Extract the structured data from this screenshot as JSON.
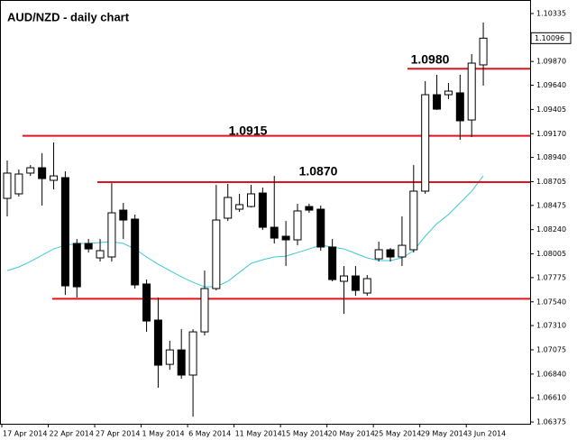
{
  "chart_data": {
    "type": "candlestick",
    "title": "AUD/NZD - daily chart",
    "categories": [
      "17 Apr 2014",
      null,
      null,
      null,
      "22 Apr 2014",
      null,
      null,
      null,
      "27 Apr 2014",
      null,
      null,
      null,
      "1 May 2014",
      null,
      null,
      null,
      "6 May 2014",
      null,
      null,
      null,
      "11 May 2014",
      null,
      null,
      null,
      "15 May 2014",
      null,
      null,
      null,
      "20 May 2014",
      null,
      null,
      null,
      "25 May 2014",
      null,
      null,
      null,
      "29 May 2014",
      null,
      null,
      null,
      "3 Jun 2014",
      null
    ],
    "open": [
      1.08543,
      1.08587,
      1.08788,
      1.0884,
      1.08718,
      1.08744,
      1.08106,
      1.08106,
      1.07966,
      1.07975,
      1.08429,
      1.08342,
      1.07713,
      1.07363,
      1.06934,
      1.07074,
      1.0683,
      1.07249,
      1.07669,
      1.08351,
      1.08438,
      1.08464,
      1.08595,
      1.08263,
      1.08176,
      1.08141,
      1.08464,
      1.08438,
      1.08071,
      1.07739,
      1.07791,
      1.07625,
      1.07957,
      1.08045,
      1.07975,
      1.08045,
      1.08613,
      1.09548,
      1.09548,
      1.09566,
      1.09303,
      1.09837
    ],
    "high": [
      1.0891,
      1.08823,
      1.08866,
      1.0898,
      1.09085,
      1.08805,
      1.08149,
      1.08149,
      1.08149,
      1.08691,
      1.08499,
      1.08386,
      1.07756,
      1.07581,
      1.07162,
      1.07275,
      1.07275,
      1.07843,
      1.08674,
      1.08683,
      1.08587,
      1.08674,
      1.08648,
      1.08761,
      1.08324,
      1.08491,
      1.08491,
      1.08473,
      1.08149,
      1.07887,
      1.07887,
      1.078,
      1.08123,
      1.08062,
      1.08368,
      1.08866,
      1.09679,
      1.09741,
      1.09662,
      1.09741,
      1.09942,
      1.10248
    ],
    "low": [
      1.08368,
      1.0856,
      1.08761,
      1.08473,
      1.0863,
      1.07607,
      1.07581,
      1.08018,
      1.07931,
      1.07931,
      1.08149,
      1.07669,
      1.07249,
      1.06707,
      1.06882,
      1.06795,
      1.06427,
      1.07214,
      1.07651,
      1.08324,
      1.08412,
      1.08456,
      1.08237,
      1.08106,
      1.07887,
      1.08088,
      1.08403,
      1.08036,
      1.07739,
      1.07424,
      1.07599,
      1.07599,
      1.07931,
      1.07931,
      1.07887,
      1.08018,
      1.08587,
      1.094,
      1.09505,
      1.09111,
      1.09137,
      1.09636
    ],
    "close": [
      1.08788,
      1.08779,
      1.0884,
      1.08735,
      1.08761,
      1.07695,
      1.07686,
      1.08053,
      1.08036,
      1.08403,
      1.08333,
      1.07704,
      1.07354,
      1.06926,
      1.07074,
      1.0683,
      1.07249,
      1.07669,
      1.08333,
      1.08552,
      1.08482,
      1.08587,
      1.08263,
      1.08158,
      1.08141,
      1.08421,
      1.08429,
      1.08071,
      1.07756,
      1.07791,
      1.07651,
      1.07765,
      1.08045,
      1.07975,
      1.08088,
      1.08613,
      1.09548,
      1.09408,
      1.09583,
      1.09295,
      1.09854,
      1.10096
    ],
    "moving_average": {
      "color": "#3cc8d8",
      "values": [
        1.07843,
        1.07878,
        1.07931,
        1.07992,
        1.08053,
        1.08088,
        1.08106,
        1.08106,
        1.08115,
        1.08123,
        1.08106,
        1.08053,
        1.07975,
        1.07905,
        1.07843,
        1.07782,
        1.0773,
        1.07686,
        1.07686,
        1.07739,
        1.07826,
        1.07913,
        1.07948,
        1.07975,
        1.07983,
        1.08018,
        1.08053,
        1.08088,
        1.08071,
        1.08053,
        1.0801,
        1.07966,
        1.0794,
        1.0794,
        1.07966,
        1.08036,
        1.08176,
        1.08298,
        1.08386,
        1.08499,
        1.08613,
        1.08761
      ]
    },
    "levels": [
      {
        "value": 1.098,
        "label": "1.0980"
      },
      {
        "value": 1.0915,
        "label": "1.0915"
      },
      {
        "value": 1.087,
        "label": "1.0870"
      },
      {
        "value": 1.0757
      }
    ],
    "level_color": "#e0141e",
    "current_price": 1.10096,
    "ylim": [
      1.06358,
      1.10466
    ],
    "yticks": [
      1.10335,
      {
        "value": 1.0987,
        "label": "1.09870"
      },
      {
        "value": 1.0964,
        "label": "1.09640"
      },
      1.09405,
      {
        "value": 1.0917,
        "label": "1.09170"
      },
      {
        "value": 1.0894,
        "label": "1.08940"
      },
      1.08705,
      1.08475,
      {
        "value": 1.0824,
        "label": "1.08240"
      },
      1.08005,
      1.07775,
      {
        "value": 1.0754,
        "label": "1.07540"
      },
      {
        "value": 1.0731,
        "label": "1.07310"
      },
      1.07075,
      {
        "value": 1.0684,
        "label": "1.06840"
      },
      {
        "value": 1.0661,
        "label": "1.06610"
      },
      1.06375
    ]
  }
}
